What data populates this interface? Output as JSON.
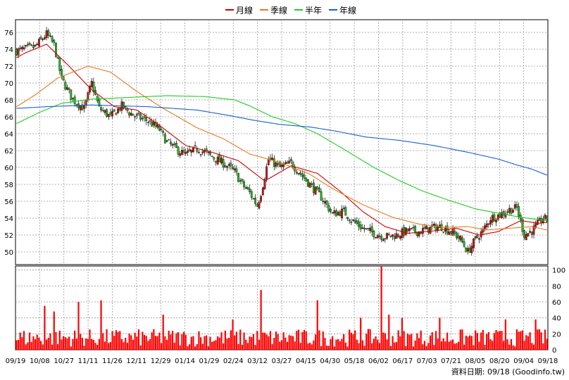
{
  "chart_data": {
    "type": "candlestick",
    "legend": [
      {
        "label": "月線",
        "color": "#cc0000"
      },
      {
        "label": "季線",
        "color": "#e87a1a"
      },
      {
        "label": "半年",
        "color": "#22cc22"
      },
      {
        "label": "年線",
        "color": "#1a5fd0"
      }
    ],
    "up_color": "#d01515",
    "down_color": "#22bb22",
    "volume_color": "#ff0000",
    "price_axis": {
      "min": 48.5,
      "max": 77.5,
      "ticks": [
        50,
        52,
        54,
        56,
        58,
        60,
        62,
        64,
        66,
        68,
        70,
        72,
        74,
        76
      ]
    },
    "volume_axis": {
      "min": 0,
      "max": 105,
      "ticks": [
        0,
        20,
        40,
        60,
        80,
        100
      ]
    },
    "x_tick_labels": [
      "09/19",
      "10/08",
      "10/27",
      "11/11",
      "11/26",
      "12/11",
      "12/29",
      "01/14",
      "01/29",
      "02/24",
      "03/12",
      "03/27",
      "04/15",
      "04/30",
      "05/18",
      "06/02",
      "06/17",
      "07/03",
      "07/21",
      "08/05",
      "08/20",
      "09/04",
      "09/18"
    ],
    "close_anchors": [
      [
        0,
        73.8
      ],
      [
        10,
        74.3
      ],
      [
        16,
        75.8
      ],
      [
        20,
        74.5
      ],
      [
        24,
        70.5
      ],
      [
        30,
        68.0
      ],
      [
        36,
        67.0
      ],
      [
        40,
        70.0
      ],
      [
        44,
        67.0
      ],
      [
        50,
        66.0
      ],
      [
        56,
        67.3
      ],
      [
        60,
        66.5
      ],
      [
        64,
        66.0
      ],
      [
        70,
        65.5
      ],
      [
        76,
        64.5
      ],
      [
        80,
        63.0
      ],
      [
        86,
        62.0
      ],
      [
        90,
        61.5
      ],
      [
        96,
        62.2
      ],
      [
        100,
        61.8
      ],
      [
        106,
        61.0
      ],
      [
        110,
        60.5
      ],
      [
        116,
        59.5
      ],
      [
        120,
        58.0
      ],
      [
        124,
        57.0
      ],
      [
        128,
        55.5
      ],
      [
        130,
        57.0
      ],
      [
        134,
        61.0
      ],
      [
        140,
        60.0
      ],
      [
        146,
        60.5
      ],
      [
        150,
        59.5
      ],
      [
        154,
        58.5
      ],
      [
        158,
        57.5
      ],
      [
        162,
        56.5
      ],
      [
        168,
        54.5
      ],
      [
        174,
        54.8
      ],
      [
        178,
        53.8
      ],
      [
        184,
        52.8
      ],
      [
        190,
        52.2
      ],
      [
        196,
        51.8
      ],
      [
        202,
        52.0
      ],
      [
        208,
        52.5
      ],
      [
        214,
        52.4
      ],
      [
        220,
        52.8
      ],
      [
        226,
        53.0
      ],
      [
        232,
        52.3
      ],
      [
        236,
        51.5
      ],
      [
        240,
        50.0
      ],
      [
        244,
        51.5
      ],
      [
        248,
        52.5
      ],
      [
        252,
        54.0
      ],
      [
        258,
        54.5
      ],
      [
        262,
        55.0
      ],
      [
        266,
        55.2
      ],
      [
        270,
        52.0
      ],
      [
        274,
        52.5
      ],
      [
        278,
        53.5
      ],
      [
        280,
        54.0
      ],
      [
        282,
        53.8
      ]
    ],
    "volume_spikes": [
      [
        15,
        55
      ],
      [
        20,
        48
      ],
      [
        33,
        60
      ],
      [
        45,
        62
      ],
      [
        78,
        44
      ],
      [
        115,
        38
      ],
      [
        130,
        75
      ],
      [
        160,
        62
      ],
      [
        183,
        40
      ],
      [
        194,
        105
      ],
      [
        198,
        44
      ],
      [
        205,
        40
      ],
      [
        225,
        40
      ],
      [
        260,
        38
      ],
      [
        276,
        38
      ]
    ],
    "ma_anchors": {
      "月線": [
        [
          0,
          73.0
        ],
        [
          5,
          73.6
        ],
        [
          16,
          74.6
        ],
        [
          28,
          72.0
        ],
        [
          40,
          69.2
        ],
        [
          52,
          67.2
        ],
        [
          64,
          66.8
        ],
        [
          76,
          65.0
        ],
        [
          90,
          62.6
        ],
        [
          104,
          61.8
        ],
        [
          118,
          60.8
        ],
        [
          132,
          58.4
        ],
        [
          146,
          60.2
        ],
        [
          160,
          59.3
        ],
        [
          172,
          57.2
        ],
        [
          184,
          54.8
        ],
        [
          196,
          53.0
        ],
        [
          208,
          52.2
        ],
        [
          222,
          52.5
        ],
        [
          234,
          52.8
        ],
        [
          246,
          52.0
        ],
        [
          256,
          52.4
        ],
        [
          268,
          53.7
        ],
        [
          278,
          53.4
        ],
        [
          282,
          53.5
        ]
      ],
      "季線": [
        [
          0,
          67.2
        ],
        [
          10,
          68.6
        ],
        [
          22,
          70.6
        ],
        [
          38,
          72.0
        ],
        [
          50,
          71.3
        ],
        [
          64,
          69.0
        ],
        [
          78,
          67.0
        ],
        [
          96,
          64.7
        ],
        [
          110,
          63.4
        ],
        [
          124,
          61.6
        ],
        [
          140,
          60.6
        ],
        [
          156,
          59.2
        ],
        [
          168,
          57.5
        ],
        [
          184,
          55.6
        ],
        [
          200,
          54.1
        ],
        [
          214,
          53.3
        ],
        [
          228,
          52.9
        ],
        [
          240,
          53.0
        ],
        [
          250,
          52.6
        ],
        [
          262,
          52.8
        ],
        [
          274,
          53.0
        ],
        [
          282,
          52.6
        ]
      ],
      "半年": [
        [
          0,
          65.2
        ],
        [
          12,
          66.5
        ],
        [
          24,
          67.6
        ],
        [
          40,
          68.1
        ],
        [
          60,
          68.3
        ],
        [
          80,
          68.5
        ],
        [
          100,
          68.4
        ],
        [
          116,
          68.0
        ],
        [
          124,
          67.3
        ],
        [
          136,
          66.0
        ],
        [
          148,
          65.2
        ],
        [
          160,
          64.0
        ],
        [
          176,
          61.9
        ],
        [
          190,
          60.0
        ],
        [
          204,
          58.4
        ],
        [
          216,
          57.2
        ],
        [
          230,
          56.1
        ],
        [
          244,
          55.1
        ],
        [
          256,
          54.6
        ],
        [
          268,
          54.1
        ],
        [
          282,
          53.7
        ]
      ],
      "年線": [
        [
          0,
          67.0
        ],
        [
          16,
          67.2
        ],
        [
          40,
          67.4
        ],
        [
          70,
          67.2
        ],
        [
          96,
          66.8
        ],
        [
          112,
          66.2
        ],
        [
          126,
          65.6
        ],
        [
          140,
          65.1
        ],
        [
          156,
          64.8
        ],
        [
          170,
          64.3
        ],
        [
          186,
          63.6
        ],
        [
          204,
          63.2
        ],
        [
          222,
          62.6
        ],
        [
          240,
          61.8
        ],
        [
          256,
          61.0
        ],
        [
          266,
          60.3
        ],
        [
          274,
          59.8
        ],
        [
          282,
          59.1
        ]
      ]
    }
  },
  "footer": {
    "source": "資料日期: 09/18 (Goodinfo.tw)"
  }
}
